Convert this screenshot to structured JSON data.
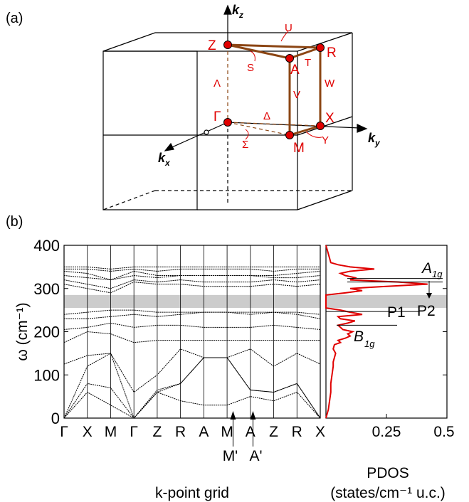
{
  "panel_labels": {
    "a": "(a)",
    "b": "(b)"
  },
  "brillouin_zone": {
    "axes": {
      "kx": "k",
      "kx_sub": "x",
      "ky": "k",
      "ky_sub": "y",
      "kz": "k",
      "kz_sub": "z"
    },
    "points": [
      "Z",
      "A",
      "R",
      "Γ",
      "M",
      "X"
    ],
    "lines": [
      "U",
      "S",
      "T",
      "W",
      "V",
      "Λ",
      "Δ",
      "Σ",
      "Y"
    ],
    "colors": {
      "path": "#8B4513",
      "point": "#e00000",
      "label": "#e00000"
    }
  },
  "chart_data": [
    {
      "type": "line",
      "title": "",
      "ylabel": "ω (cm⁻¹)",
      "xlabel": "k-point grid",
      "ylim": [
        0,
        400
      ],
      "yticks": [
        0,
        100,
        200,
        300,
        400
      ],
      "xticks": [
        "Γ",
        "X",
        "M",
        "Γ",
        "Z",
        "R",
        "A",
        "M",
        "A",
        "Z",
        "R",
        "X"
      ],
      "extra_labels": [
        "M'",
        "A'"
      ],
      "gap_band": [
        255,
        285
      ],
      "series": [
        {
          "x": [
            0,
            1,
            2,
            3,
            4,
            5,
            6,
            7,
            8,
            9,
            10,
            11
          ],
          "values": [
            0,
            60,
            30,
            0,
            60,
            40,
            30,
            30,
            50,
            40,
            60,
            0
          ]
        },
        {
          "x": [
            0,
            1,
            2,
            3,
            4,
            5,
            6,
            7,
            8,
            9,
            10,
            11
          ],
          "values": [
            0,
            80,
            70,
            0,
            60,
            80,
            140,
            140,
            65,
            60,
            80,
            0
          ]
        },
        {
          "x": [
            0,
            1,
            2,
            3,
            4,
            5,
            6,
            7,
            8,
            9,
            10,
            11
          ],
          "values": [
            0,
            120,
            150,
            0,
            65,
            80,
            140,
            140,
            65,
            60,
            80,
            0
          ]
        },
        {
          "x": [
            0,
            1,
            2,
            3,
            4,
            5,
            6,
            7,
            8,
            9,
            10,
            11
          ],
          "values": [
            125,
            145,
            150,
            60,
            100,
            160,
            140,
            140,
            160,
            120,
            150,
            125
          ]
        },
        {
          "x": [
            0,
            1,
            2,
            3,
            4,
            5,
            6,
            7,
            8,
            9,
            10,
            11
          ],
          "values": [
            175,
            200,
            195,
            175,
            180,
            180,
            180,
            180,
            180,
            180,
            180,
            180
          ]
        },
        {
          "x": [
            0,
            1,
            2,
            3,
            4,
            5,
            6,
            7,
            8,
            9,
            10,
            11
          ],
          "values": [
            205,
            210,
            220,
            210,
            215,
            215,
            210,
            210,
            210,
            215,
            210,
            205
          ]
        },
        {
          "x": [
            0,
            1,
            2,
            3,
            4,
            5,
            6,
            7,
            8,
            9,
            10,
            11
          ],
          "values": [
            230,
            230,
            235,
            240,
            235,
            240,
            245,
            245,
            240,
            245,
            240,
            230
          ]
        },
        {
          "x": [
            0,
            1,
            2,
            3,
            4,
            5,
            6,
            7,
            8,
            9,
            10,
            11
          ],
          "values": [
            240,
            245,
            250,
            250,
            245,
            245,
            245,
            245,
            245,
            245,
            245,
            240
          ]
        },
        {
          "x": [
            0,
            1,
            2,
            3,
            4,
            5,
            6,
            7,
            8,
            9,
            10,
            11
          ],
          "values": [
            310,
            300,
            290,
            315,
            310,
            310,
            305,
            305,
            305,
            310,
            305,
            310
          ]
        },
        {
          "x": [
            0,
            1,
            2,
            3,
            4,
            5,
            6,
            7,
            8,
            9,
            10,
            11
          ],
          "values": [
            320,
            310,
            300,
            320,
            315,
            320,
            315,
            315,
            315,
            320,
            315,
            320
          ]
        },
        {
          "x": [
            0,
            1,
            2,
            3,
            4,
            5,
            6,
            7,
            8,
            9,
            10,
            11
          ],
          "values": [
            330,
            325,
            320,
            330,
            325,
            330,
            330,
            330,
            330,
            325,
            325,
            330
          ]
        },
        {
          "x": [
            0,
            1,
            2,
            3,
            4,
            5,
            6,
            7,
            8,
            9,
            10,
            11
          ],
          "values": [
            340,
            335,
            320,
            340,
            330,
            330,
            330,
            330,
            330,
            330,
            335,
            340
          ]
        },
        {
          "x": [
            0,
            1,
            2,
            3,
            4,
            5,
            6,
            7,
            8,
            9,
            10,
            11
          ],
          "values": [
            345,
            345,
            340,
            345,
            340,
            345,
            345,
            345,
            345,
            340,
            345,
            345
          ]
        },
        {
          "x": [
            0,
            1,
            2,
            3,
            4,
            5,
            6,
            7,
            8,
            9,
            10,
            11
          ],
          "values": [
            350,
            350,
            345,
            350,
            350,
            350,
            350,
            350,
            350,
            350,
            350,
            350
          ]
        }
      ]
    },
    {
      "type": "line",
      "title": "",
      "xlabel": "PDOS",
      "xlabel2": "(states/cm⁻¹ u.c.)",
      "xlim": [
        0,
        0.5
      ],
      "xticks": [
        "0.25",
        "0.5"
      ],
      "xtick_values": [
        0.25,
        0.5
      ],
      "ylim": [
        0,
        400
      ],
      "gap_band": [
        255,
        285
      ],
      "annotations": [
        "A",
        "1g",
        "P2",
        "P1",
        "B",
        "1g"
      ],
      "color": "#e00000",
      "series": [
        {
          "w": [
            0,
            20,
            40,
            60,
            80,
            100,
            120,
            130,
            140,
            150,
            160,
            170,
            175,
            180,
            185,
            190,
            195,
            200,
            205,
            210,
            215,
            220,
            225,
            230,
            235,
            240,
            245,
            250,
            255,
            285,
            290,
            295,
            300,
            305,
            310,
            315,
            320,
            325,
            330,
            335,
            340,
            345,
            350,
            355,
            360,
            400
          ],
          "pdos": [
            0,
            0.01,
            0.015,
            0.02,
            0.02,
            0.025,
            0.03,
            0.03,
            0.035,
            0.04,
            0.03,
            0.035,
            0.06,
            0.05,
            0.08,
            0.1,
            0.09,
            0.11,
            0.07,
            0.06,
            0.05,
            0.09,
            0.12,
            0.06,
            0.05,
            0.15,
            0.1,
            0.06,
            0,
            0,
            0.08,
            0.15,
            0.1,
            0.25,
            0.42,
            0.3,
            0.1,
            0.12,
            0.08,
            0.06,
            0.1,
            0.2,
            0.1,
            0.05,
            0.02,
            0
          ]
        }
      ]
    }
  ]
}
